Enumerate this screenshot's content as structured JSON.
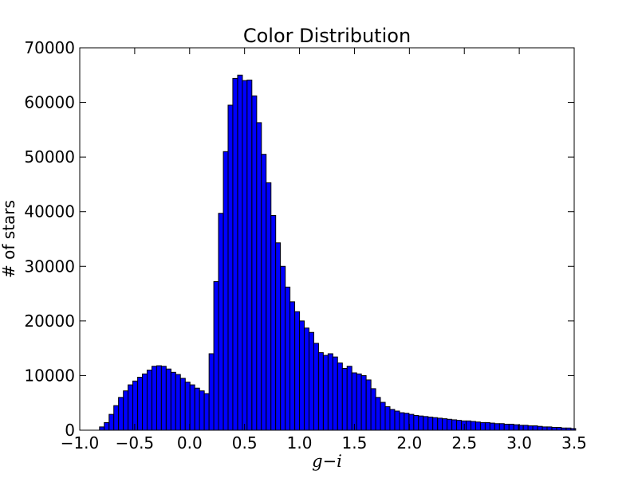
{
  "chart_data": {
    "type": "bar",
    "title": "Color Distribution",
    "xlabel": "g−i",
    "ylabel": "# of stars",
    "xlim": [
      -1.0,
      3.5
    ],
    "ylim": [
      0,
      70000
    ],
    "bar_color": "#0000ff",
    "edge_color": "#000000",
    "grid": false,
    "x_ticks": [
      "−1.0",
      "−0.5",
      "0.0",
      "0.5",
      "1.0",
      "1.5",
      "2.0",
      "2.5",
      "3.0",
      "3.5"
    ],
    "y_ticks": [
      "0",
      "10000",
      "20000",
      "30000",
      "40000",
      "50000",
      "60000",
      "70000"
    ],
    "bin_width": 0.0433,
    "bin_left_edges": [
      -0.82,
      -0.777,
      -0.733,
      -0.69,
      -0.647,
      -0.603,
      -0.56,
      -0.517,
      -0.473,
      -0.43,
      -0.387,
      -0.343,
      -0.3,
      -0.257,
      -0.213,
      -0.17,
      -0.127,
      -0.083,
      -0.04,
      0.003,
      0.047,
      0.09,
      0.133,
      0.177,
      0.22,
      0.263,
      0.307,
      0.35,
      0.393,
      0.437,
      0.48,
      0.523,
      0.567,
      0.61,
      0.653,
      0.697,
      0.74,
      0.783,
      0.827,
      0.87,
      0.913,
      0.957,
      1.0,
      1.043,
      1.087,
      1.13,
      1.173,
      1.217,
      1.26,
      1.303,
      1.347,
      1.39,
      1.433,
      1.477,
      1.52,
      1.563,
      1.607,
      1.65,
      1.693,
      1.737,
      1.78,
      1.823,
      1.867,
      1.91,
      1.953,
      1.997,
      2.04,
      2.083,
      2.127,
      2.17,
      2.213,
      2.257,
      2.3,
      2.343,
      2.387,
      2.43,
      2.473,
      2.517,
      2.56,
      2.603,
      2.647,
      2.69,
      2.733,
      2.777,
      2.82,
      2.863,
      2.907,
      2.95,
      2.993,
      3.037,
      3.08,
      3.123,
      3.167,
      3.21,
      3.253,
      3.297,
      3.34,
      3.383,
      3.427,
      3.47
    ],
    "values": [
      600,
      1400,
      2900,
      4500,
      6000,
      7200,
      8300,
      9000,
      9700,
      10300,
      11000,
      11700,
      11800,
      11700,
      11200,
      10600,
      10200,
      9500,
      8800,
      8300,
      7700,
      7200,
      6700,
      14000,
      27200,
      39700,
      51000,
      59500,
      64400,
      65000,
      64000,
      64100,
      61200,
      56300,
      50500,
      45300,
      39300,
      34300,
      30000,
      26200,
      23500,
      21700,
      20000,
      18700,
      17900,
      15900,
      14200,
      13700,
      14000,
      13400,
      12300,
      11300,
      11700,
      10500,
      10300,
      10000,
      9200,
      7600,
      6000,
      5100,
      4300,
      3800,
      3500,
      3200,
      3100,
      2900,
      2700,
      2600,
      2500,
      2400,
      2300,
      2200,
      2100,
      2000,
      1900,
      1800,
      1700,
      1700,
      1600,
      1500,
      1400,
      1400,
      1300,
      1200,
      1200,
      1100,
      1100,
      1000,
      900,
      900,
      800,
      800,
      700,
      600,
      600,
      500,
      500,
      400,
      400,
      300
    ]
  }
}
